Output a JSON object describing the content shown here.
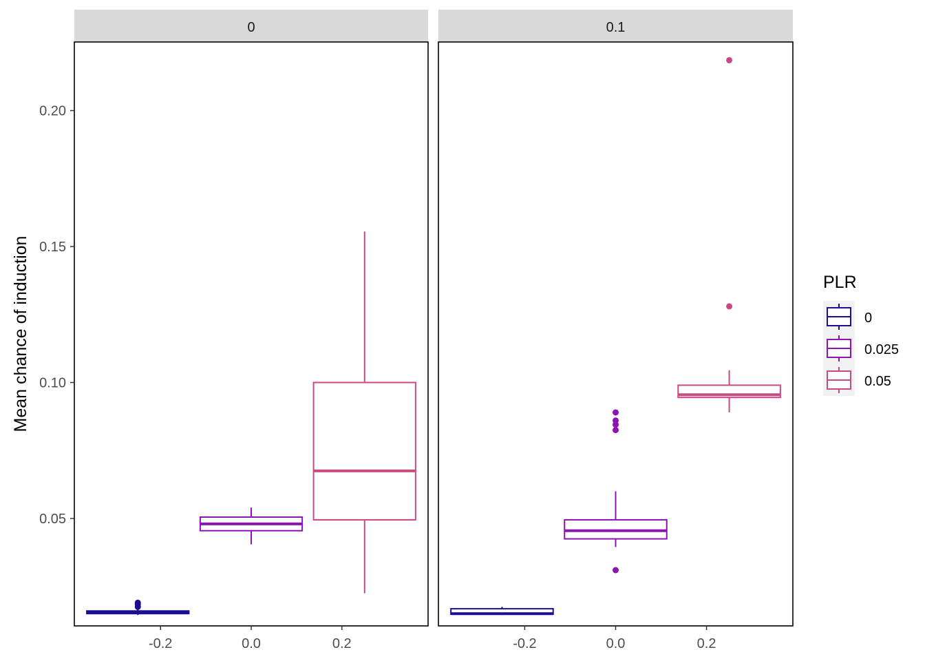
{
  "chart_data": {
    "type": "boxplot",
    "ylabel": "Mean chance of induction",
    "xlabel": "",
    "ylim": [
      0.0105,
      0.2252
    ],
    "xlim": [
      -0.39,
      0.39
    ],
    "y_ticks": [
      0.05,
      0.1,
      0.15,
      0.2
    ],
    "y_tick_labels": [
      "0.05",
      "0.10",
      "0.15",
      "0.20"
    ],
    "x_ticks": [
      -0.2,
      0.0,
      0.2
    ],
    "x_tick_labels": [
      "-0.2",
      "0.0",
      "0.2"
    ],
    "box_width": 0.225,
    "legend": {
      "title": "PLR",
      "placement": "right",
      "entries": [
        {
          "label": "0",
          "color": "#1b0f8f"
        },
        {
          "label": "0.025",
          "color": "#8c14b4"
        },
        {
          "label": "0.05",
          "color": "#c94a83"
        }
      ]
    },
    "panels": [
      {
        "strip": "0",
        "boxes": [
          {
            "series": "0",
            "x": -0.25,
            "lower_whisker": 0.0145,
            "q1": 0.015,
            "median": 0.0155,
            "q3": 0.016,
            "upper_whisker": 0.0165,
            "outliers": [
              0.0175,
              0.0185,
              0.019
            ]
          },
          {
            "series": "0.025",
            "x": 0.0,
            "lower_whisker": 0.0405,
            "q1": 0.0455,
            "median": 0.048,
            "q3": 0.0505,
            "upper_whisker": 0.054,
            "outliers": []
          },
          {
            "series": "0.05",
            "x": 0.25,
            "lower_whisker": 0.0225,
            "q1": 0.0495,
            "median": 0.0675,
            "q3": 0.1,
            "upper_whisker": 0.1555,
            "outliers": []
          }
        ]
      },
      {
        "strip": "0.1",
        "boxes": [
          {
            "series": "0",
            "x": -0.25,
            "lower_whisker": 0.0145,
            "q1": 0.0148,
            "median": 0.015,
            "q3": 0.0168,
            "upper_whisker": 0.0175,
            "outliers": []
          },
          {
            "series": "0.025",
            "x": 0.0,
            "lower_whisker": 0.0395,
            "q1": 0.0425,
            "median": 0.0455,
            "q3": 0.0495,
            "upper_whisker": 0.06,
            "outliers": [
              0.031,
              0.0825,
              0.0845,
              0.086,
              0.089
            ]
          },
          {
            "series": "0.05",
            "x": 0.25,
            "lower_whisker": 0.089,
            "q1": 0.0945,
            "median": 0.0955,
            "q3": 0.099,
            "upper_whisker": 0.1045,
            "outliers": [
              0.128,
              0.2185
            ]
          }
        ]
      }
    ]
  }
}
